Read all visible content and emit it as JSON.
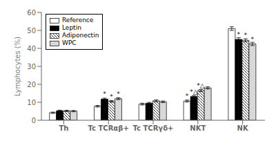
{
  "chart_data": {
    "type": "bar",
    "categories": [
      "Th",
      "Tc TCRαβ+",
      "Tc TCRγδ+",
      "NKT",
      "NK"
    ],
    "y_label": "Lymphocytes (%)",
    "ylim": [
      0,
      60
    ],
    "yticks": [
      0,
      10,
      20,
      30,
      40,
      50,
      60
    ],
    "grid": false,
    "legend": "upper left",
    "series": [
      {
        "name": "Reference",
        "color": "white",
        "values": [
          4.2,
          7.8,
          9.0,
          10.7,
          51.0
        ],
        "errors": [
          0.35,
          0.45,
          0.5,
          0.55,
          1.0
        ],
        "annotations": [
          null,
          null,
          null,
          "*",
          null
        ]
      },
      {
        "name": "Leptin",
        "color": "black",
        "values": [
          5.3,
          11.8,
          9.5,
          13.2,
          45.0
        ],
        "errors": [
          0.35,
          0.5,
          0.45,
          0.5,
          0.9
        ],
        "annotations": [
          null,
          "*",
          null,
          "*△",
          "*"
        ]
      },
      {
        "name": "Adiponectin",
        "color": "white",
        "values": [
          5.2,
          10.5,
          10.8,
          16.5,
          44.5
        ],
        "errors": [
          0.35,
          0.45,
          0.5,
          0.6,
          0.85
        ],
        "annotations": [
          null,
          "*",
          null,
          "*△",
          "*"
        ]
      },
      {
        "name": "WPC",
        "color": "#d8d8d8",
        "values": [
          5.1,
          12.0,
          10.3,
          18.0,
          42.5
        ],
        "errors": [
          0.35,
          0.5,
          0.45,
          0.6,
          0.9
        ],
        "annotations": [
          null,
          "*",
          null,
          null,
          "*"
        ]
      }
    ]
  }
}
